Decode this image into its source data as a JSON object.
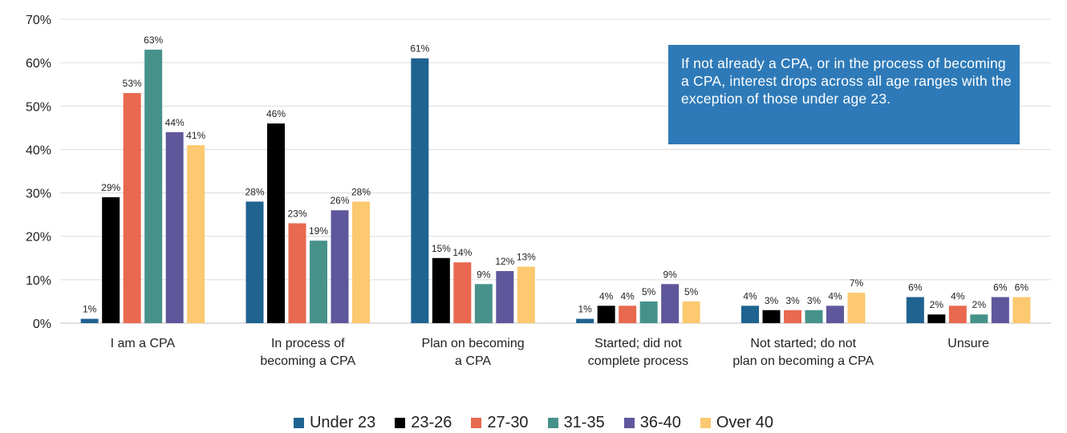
{
  "chart_data": {
    "type": "bar",
    "categories": [
      [
        "I am a CPA"
      ],
      [
        "In process of",
        "becoming a CPA"
      ],
      [
        "Plan on becoming",
        "a CPA"
      ],
      [
        "Started; did not",
        "complete process"
      ],
      [
        "Not started; do not",
        "plan on becoming a CPA"
      ],
      [
        "Unsure"
      ]
    ],
    "series": [
      {
        "name": "Under 23",
        "color": "#1f6391",
        "values": [
          1,
          28,
          61,
          1,
          4,
          6
        ]
      },
      {
        "name": "23-26",
        "color": "#000000",
        "values": [
          29,
          46,
          15,
          4,
          3,
          2
        ]
      },
      {
        "name": "27-30",
        "color": "#e8694f",
        "values": [
          53,
          23,
          14,
          4,
          3,
          4
        ]
      },
      {
        "name": "31-35",
        "color": "#46928b",
        "values": [
          63,
          19,
          9,
          5,
          3,
          2
        ]
      },
      {
        "name": "36-40",
        "color": "#5f579b",
        "values": [
          44,
          26,
          12,
          9,
          4,
          6
        ]
      },
      {
        "name": "Over 40",
        "color": "#fcc970",
        "values": [
          41,
          28,
          13,
          5,
          7,
          6
        ]
      }
    ],
    "yticks": [
      "0%",
      "10%",
      "20%",
      "30%",
      "40%",
      "50%",
      "60%",
      "70%"
    ],
    "ylim": [
      0,
      70
    ],
    "value_suffix": "%",
    "grid": true,
    "legend_position": "bottom"
  },
  "callout": {
    "text": "If not already a CPA, or in the process of becoming a CPA, interest drops across all age ranges with the exception of those under age 23."
  }
}
